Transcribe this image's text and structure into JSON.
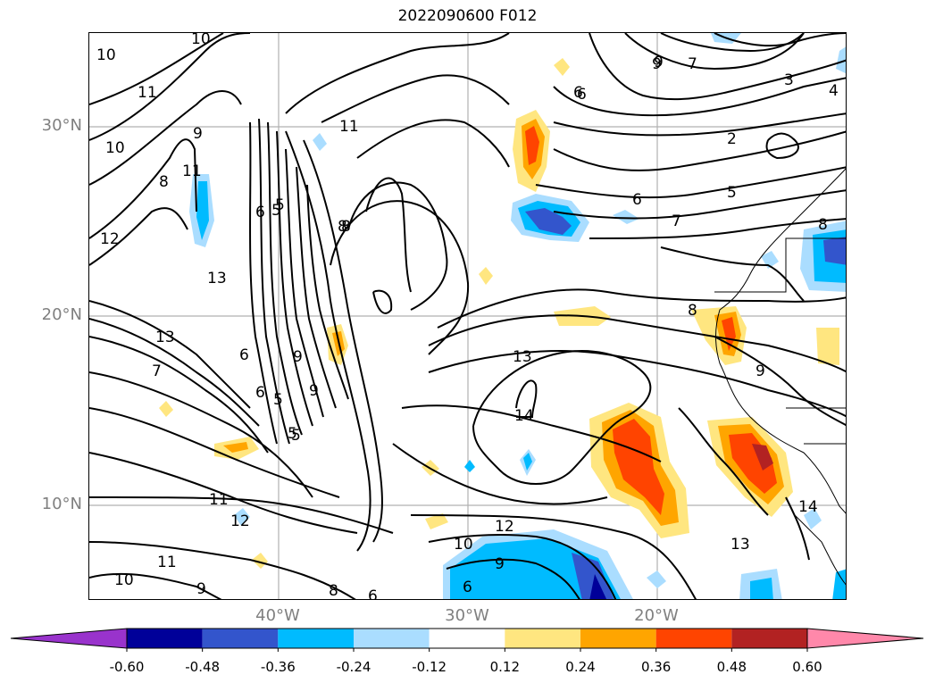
{
  "title": "2022090600 F012",
  "lat_labels": [
    "30°N",
    "20°N",
    "10°N"
  ],
  "lon_labels": [
    "40°W",
    "30°W",
    "20°W"
  ],
  "contour_labels": [
    "10",
    "10",
    "10",
    "11",
    "11",
    "11",
    "12",
    "12",
    "13",
    "13",
    "9",
    "8",
    "8",
    "7",
    "6",
    "5",
    "5",
    "5",
    "6",
    "6",
    "9",
    "9",
    "8",
    "7",
    "6",
    "5",
    "4",
    "3",
    "2",
    "6",
    "9",
    "14",
    "14",
    "13",
    "13",
    "12",
    "11",
    "11",
    "10",
    "10",
    "9",
    "9",
    "8",
    "6",
    "6",
    "5",
    "5",
    "9",
    "7",
    "6",
    "8",
    "9",
    "8"
  ],
  "colorbar": {
    "ticks": [
      "-0.60",
      "-0.48",
      "-0.36",
      "-0.24",
      "-0.12",
      "0.12",
      "0.24",
      "0.36",
      "0.48",
      "0.60"
    ],
    "colors": [
      "#9933cc",
      "#000099",
      "#3355cc",
      "#00bbff",
      "#aaddff",
      "#ffffff",
      "#ffe680",
      "#ffa500",
      "#ff4400",
      "#b22222",
      "#ff88aa"
    ]
  }
}
